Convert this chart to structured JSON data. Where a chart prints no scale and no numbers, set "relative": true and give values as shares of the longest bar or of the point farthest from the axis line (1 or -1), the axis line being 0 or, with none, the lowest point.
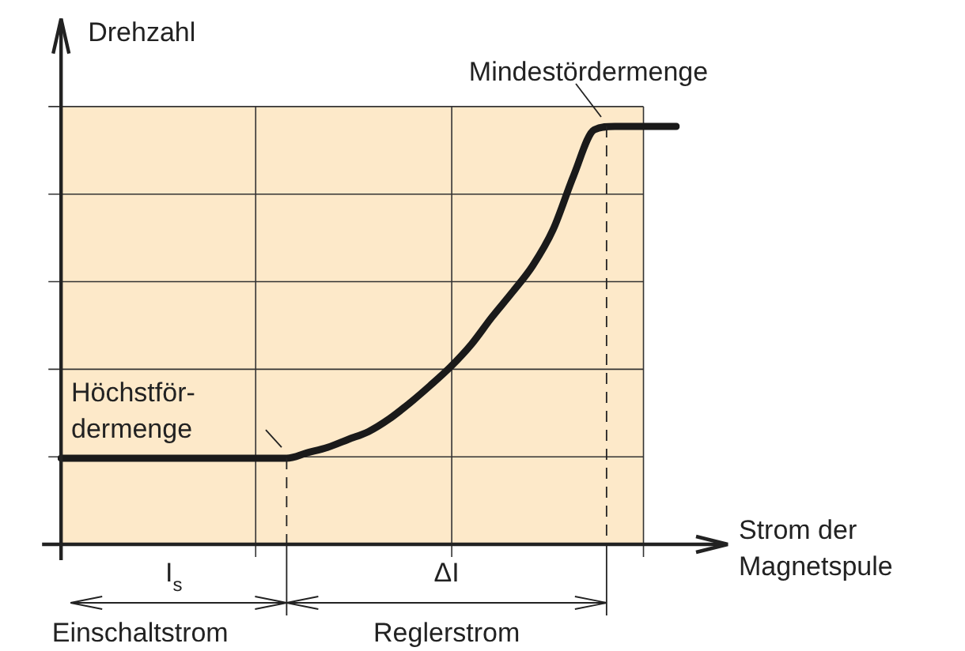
{
  "chart_data": {
    "type": "line",
    "relative": true,
    "grid": true,
    "ylabel": "Drehzahl",
    "xlabel": "Strom der Magnetspule",
    "categories": [
      null,
      null,
      null,
      null,
      null,
      null,
      null,
      null,
      null,
      null,
      null,
      null,
      null,
      null,
      null,
      null,
      null,
      null,
      null,
      null,
      null,
      null,
      null,
      null,
      null,
      null,
      null,
      null,
      null,
      null,
      null
    ],
    "series": [
      {
        "color": "#1a1a1a",
        "values": [
          0.206,
          0.206,
          0.206,
          0.206,
          0.206,
          0.206,
          0.206,
          0.206,
          0.206,
          0.206,
          0.206,
          0.206,
          0.219,
          0.232,
          0.251,
          0.27,
          0.3,
          0.338,
          0.38,
          0.425,
          0.478,
          0.543,
          0.603,
          0.667,
          0.754,
          0.883,
          0.992,
          1,
          1,
          1,
          1
        ]
      }
    ],
    "annotations": [
      "Höchstför-\ndermenge",
      "Mindestördermenge",
      "I$_{s}$",
      "ΔI",
      "Einschaltstrom",
      "Reglerstrom"
    ]
  }
}
